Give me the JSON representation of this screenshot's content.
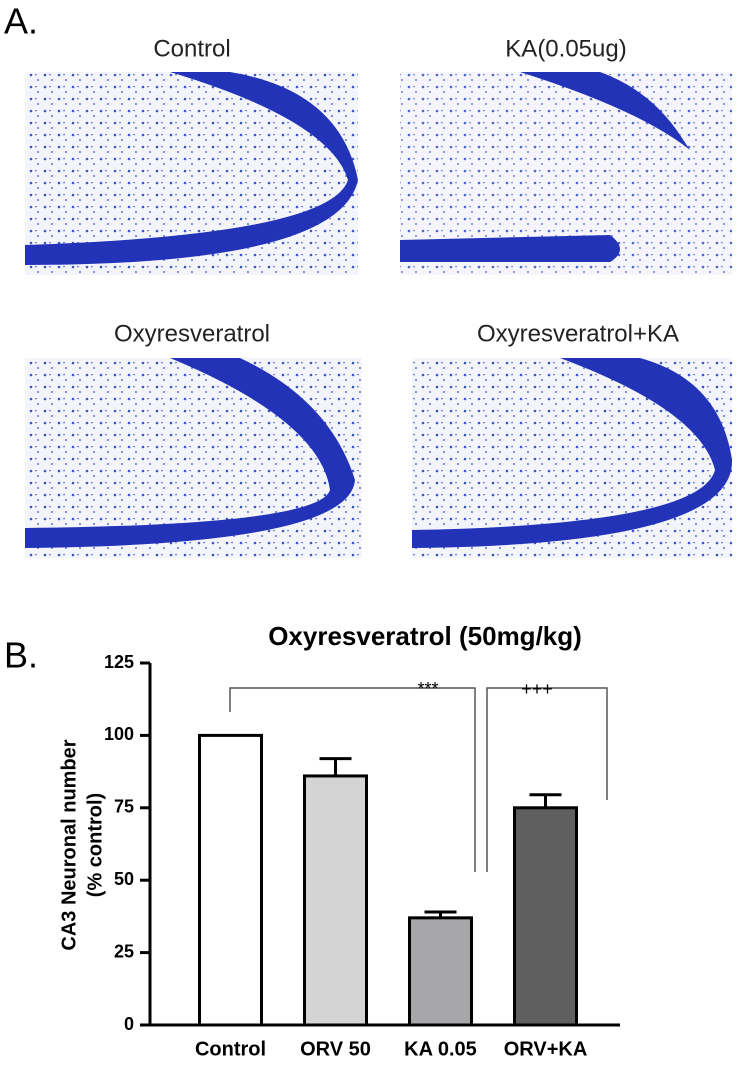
{
  "panel_a": {
    "label": "A.",
    "images": [
      {
        "caption": "Control"
      },
      {
        "caption": "KA(0.05ug)"
      },
      {
        "caption": "Oxyresveratrol"
      },
      {
        "caption": "Oxyresveratrol+KA"
      }
    ]
  },
  "panel_b": {
    "label": "B."
  },
  "chart_data": {
    "type": "bar",
    "title": "Oxyresveratrol (50mg/kg)",
    "ylabel": [
      "CA3 Neuronal number",
      "(% control)"
    ],
    "categories": [
      "Control",
      "ORV 50",
      "KA 0.05",
      "ORV+KA"
    ],
    "values": [
      100,
      86,
      37,
      75
    ],
    "errors": [
      null,
      6,
      2,
      4.5
    ],
    "colors": [
      "#ffffff",
      "#d4d4d4",
      "#a7a7aa",
      "#5f5f5f"
    ],
    "ylim": [
      0,
      125
    ],
    "yticks": [
      0,
      25,
      50,
      75,
      100,
      125
    ],
    "annotations": [
      "***",
      "+++"
    ]
  }
}
